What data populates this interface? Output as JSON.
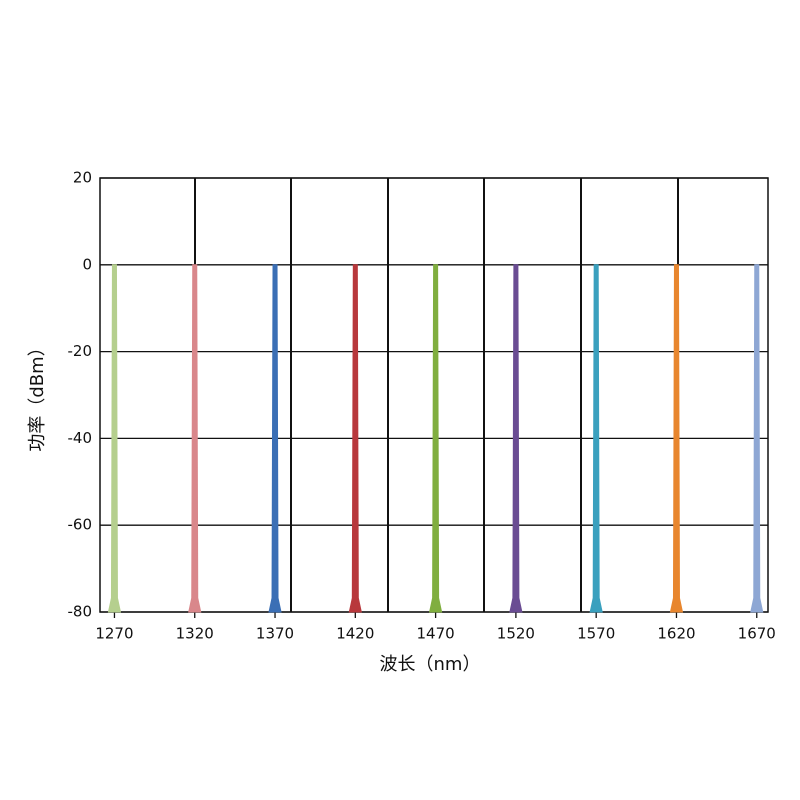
{
  "chart_data": {
    "type": "spike",
    "x_label": "波长（nm）",
    "y_label": "功率（dBm）",
    "x": [
      1270,
      1320,
      1370,
      1420,
      1470,
      1520,
      1570,
      1620,
      1670
    ],
    "values": [
      0,
      0,
      0,
      0,
      0,
      0,
      0,
      0,
      0
    ],
    "colors": [
      "#b5cf8e",
      "#d9878b",
      "#3b6fb5",
      "#b8383c",
      "#80ae3f",
      "#6a4c93",
      "#3aa0be",
      "#e8862e",
      "#8ea7d4"
    ],
    "xlim": [
      1261,
      1677
    ],
    "xticks": [
      1270,
      1320,
      1370,
      1420,
      1470,
      1520,
      1570,
      1620,
      1670
    ],
    "ylim": [
      -80,
      20
    ],
    "yticks": [
      20,
      0,
      -20,
      -40,
      -60,
      -80
    ],
    "grid": true
  }
}
